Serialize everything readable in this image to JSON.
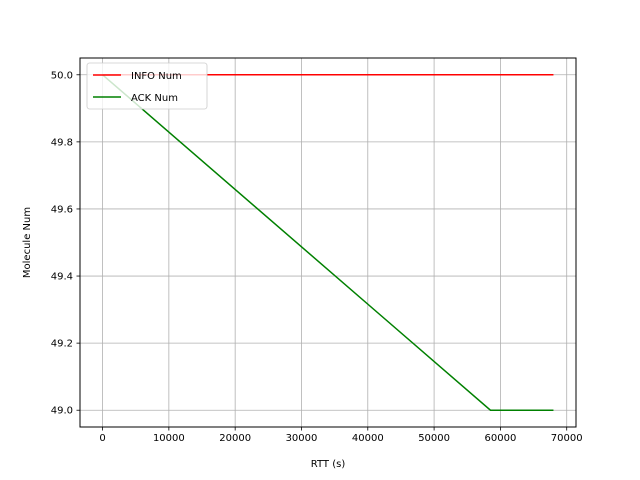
{
  "chart_data": {
    "type": "line",
    "title": "",
    "xlabel": "RTT (s)",
    "ylabel": "Molecule Num",
    "xlim": [
      -3400,
      71400
    ],
    "ylim": [
      48.95,
      50.05
    ],
    "xticks": [
      0,
      10000,
      20000,
      30000,
      40000,
      50000,
      60000,
      70000
    ],
    "xtick_labels": [
      "0",
      "10000",
      "20000",
      "30000",
      "40000",
      "50000",
      "60000",
      "70000"
    ],
    "yticks": [
      49.0,
      49.2,
      49.4,
      49.6,
      49.8,
      50.0
    ],
    "ytick_labels": [
      "49.0",
      "49.2",
      "49.4",
      "49.6",
      "49.8",
      "50.0"
    ],
    "grid": true,
    "legend_position": "top-left",
    "series": [
      {
        "name": "INFO Num",
        "color": "#ff0000",
        "x": [
          0,
          68000
        ],
        "y": [
          50.0,
          50.0
        ]
      },
      {
        "name": "ACK Num",
        "color": "#008000",
        "x": [
          0,
          58500,
          68000
        ],
        "y": [
          50.0,
          49.0,
          49.0
        ]
      }
    ]
  }
}
